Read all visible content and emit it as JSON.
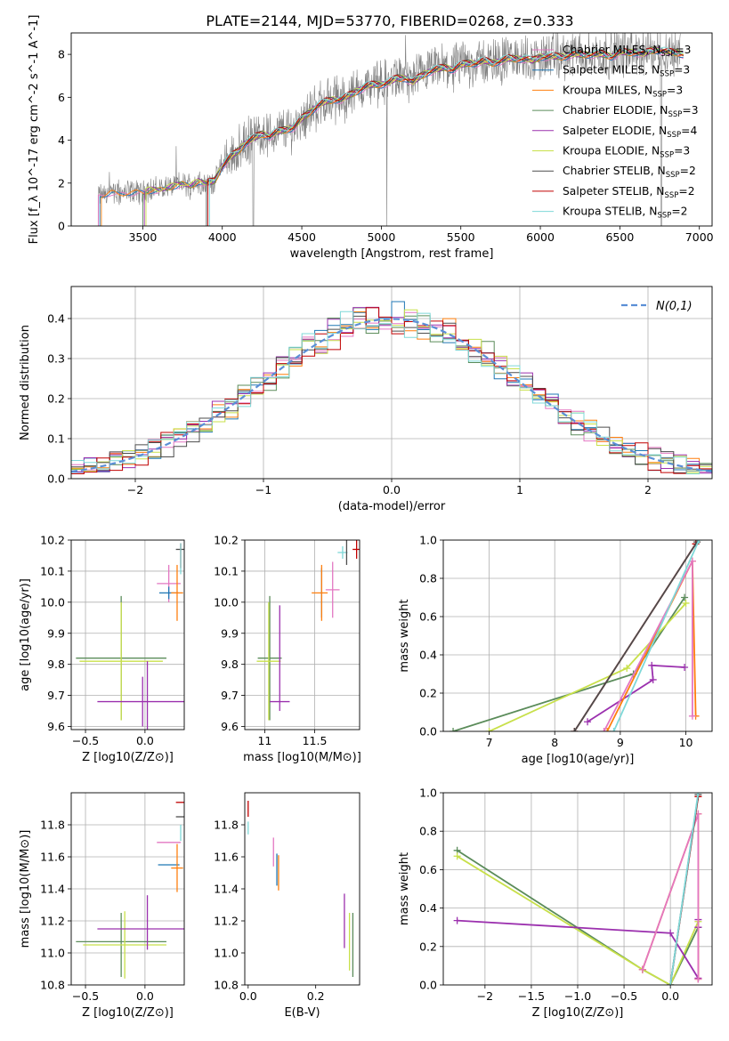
{
  "title": "PLATE=2144, MJD=53770, FIBERID=0268, z=0.333",
  "colors": [
    "#ff7f0e",
    "#e377c2",
    "#1f77b4",
    "#ff7f0e",
    "#5b8c5a",
    "#9b30ae",
    "#c8e04a",
    "#4d4d4d",
    "#c00000",
    "#7fd8d8"
  ],
  "legend_names": [
    "Chabrier MILES, N_SSP=3",
    "Salpeter MILES, N_SSP=3",
    "Kroupa MILES, N_SSP=3",
    "Chabrier ELODIE, N_SSP=3",
    "Salpeter ELODIE, N_SSP=4",
    "Kroupa ELODIE, N_SSP=3",
    "Chabrier STELIB, N_SSP=2",
    "Salpeter STELIB, N_SSP=2",
    "Kroupa STELIB, N_SSP=2"
  ],
  "chart_data": [
    {
      "id": "spectrum",
      "type": "line",
      "xlabel": "wavelength [Angstrom, rest frame]",
      "ylabel": "Flux [f_λ 10^-17 erg cm^-2 s^-1 A^-1]",
      "xlim": [
        3050,
        7080
      ],
      "ylim": [
        0,
        9
      ],
      "xticks": [
        3500,
        4000,
        4500,
        5000,
        5500,
        6000,
        6500,
        7000
      ],
      "yticks": [
        0,
        2,
        4,
        6,
        8
      ],
      "grid": false,
      "legend": "upper right",
      "data_color": "#808080",
      "model": {
        "x": [
          3220,
          3250,
          3300,
          3350,
          3400,
          3450,
          3500,
          3550,
          3600,
          3650,
          3700,
          3750,
          3800,
          3850,
          3900,
          3950,
          4000,
          4050,
          4100,
          4150,
          4200,
          4250,
          4300,
          4350,
          4400,
          4450,
          4500,
          4550,
          4600,
          4650,
          4700,
          4750,
          4800,
          4850,
          4900,
          4950,
          5000,
          5050,
          5100,
          5150,
          5200,
          5250,
          5300,
          5350,
          5400,
          5450,
          5500,
          5550,
          5600,
          5650,
          5700,
          5750,
          5800,
          5850,
          5900,
          5950,
          6000,
          6050,
          6100,
          6150,
          6200,
          6250,
          6300,
          6350,
          6400,
          6450,
          6500,
          6550,
          6600,
          6650,
          6700,
          6750,
          6800,
          6850,
          6900
        ],
        "y": [
          1.4,
          1.5,
          1.6,
          1.5,
          1.6,
          1.6,
          1.6,
          1.7,
          1.7,
          1.8,
          1.9,
          2.0,
          1.9,
          2.1,
          2.0,
          2.1,
          2.8,
          3.2,
          3.5,
          3.9,
          4.1,
          4.3,
          4.2,
          4.4,
          4.5,
          4.6,
          5.0,
          5.3,
          5.6,
          5.8,
          5.9,
          5.9,
          6.1,
          6.3,
          6.5,
          6.6,
          6.6,
          6.7,
          6.9,
          6.9,
          6.7,
          7.0,
          7.2,
          7.3,
          7.4,
          7.3,
          7.5,
          7.6,
          7.6,
          7.7,
          7.6,
          7.7,
          7.8,
          7.8,
          7.8,
          7.7,
          7.9,
          7.9,
          7.9,
          7.9,
          8.0,
          8.0,
          8.0,
          8.0,
          8.0,
          7.9,
          8.1,
          8.1,
          8.1,
          8.0,
          8.2,
          8.2,
          8.1,
          8.1,
          8.0
        ]
      },
      "model_starts": [
        3220,
        3230,
        3240,
        3500,
        3510,
        3520,
        3900,
        3910,
        3920
      ]
    },
    {
      "id": "residuals",
      "type": "step",
      "xlabel": "(data-model)/error",
      "ylabel": "Normed distribution",
      "xlim": [
        -2.5,
        2.5
      ],
      "ylim": [
        0,
        0.48
      ],
      "xticks": [
        -2,
        -1,
        0,
        1,
        2
      ],
      "yticks": [
        0.0,
        0.1,
        0.2,
        0.3,
        0.4
      ],
      "grid": true,
      "bin_width": 0.1,
      "gaussian_label": "N(0,1)",
      "gaussian_color": "#5b8fd6",
      "legend": "upper right"
    },
    {
      "id": "age_vs_Z",
      "type": "errorbar",
      "xlabel": "Z [log10(Z/Z⊙)]",
      "ylabel": "age  [log10(age/yr)]",
      "xlim": [
        -0.62,
        0.33
      ],
      "ylim": [
        9.59,
        10.2
      ],
      "xticks": [
        -0.5,
        0.0
      ],
      "yticks": [
        9.6,
        9.7,
        9.8,
        9.9,
        10.0,
        10.1,
        10.2
      ],
      "grid": true,
      "points": [
        {
          "c": 4,
          "x": -0.2,
          "y": 9.82,
          "xe": 0.38,
          "ye": 0.2
        },
        {
          "c": 6,
          "x": -0.2,
          "y": 9.81,
          "xe": 0.35,
          "ye": 0.19
        },
        {
          "c": 5,
          "x": -0.02,
          "y": 9.68,
          "xe": 0.38,
          "ye": 0.08
        },
        {
          "c": 5,
          "x": 0.02,
          "y": 9.68,
          "xe": 0.0,
          "ye": 0.13
        },
        {
          "c": 1,
          "x": 0.2,
          "y": 10.06,
          "xe": 0.1,
          "ye": 0.06
        },
        {
          "c": 2,
          "x": 0.2,
          "y": 10.03,
          "xe": 0.08,
          "ye": 0.02
        },
        {
          "c": 0,
          "x": 0.27,
          "y": 10.03,
          "xe": 0.05,
          "ye": 0.09
        },
        {
          "c": 7,
          "x": 0.3,
          "y": 10.17,
          "xe": 0.04,
          "ye": 0.0
        },
        {
          "c": 8,
          "x": 0.3,
          "y": 10.15,
          "xe": 0.0,
          "ye": 0.04
        },
        {
          "c": 9,
          "x": 0.3,
          "y": 10.14,
          "xe": 0.0,
          "ye": 0.05
        }
      ]
    },
    {
      "id": "age_vs_mass",
      "type": "errorbar",
      "xlabel": "mass [log10(M/M⊙)]",
      "ylabel": "",
      "xlim": [
        10.8,
        11.95
      ],
      "ylim": [
        9.59,
        10.2
      ],
      "xticks": [
        11.0,
        11.5
      ],
      "yticks": [
        9.6,
        9.7,
        9.8,
        9.9,
        10.0,
        10.1,
        10.2
      ],
      "grid": true,
      "points": [
        {
          "c": 4,
          "x": 11.05,
          "y": 9.82,
          "xe": 0.12,
          "ye": 0.2
        },
        {
          "c": 6,
          "x": 11.04,
          "y": 9.81,
          "xe": 0.12,
          "ye": 0.19
        },
        {
          "c": 5,
          "x": 11.15,
          "y": 9.68,
          "xe": 0.1,
          "ye": 0.0
        },
        {
          "c": 5,
          "x": 11.15,
          "y": 9.82,
          "xe": 0.0,
          "ye": 0.17
        },
        {
          "c": 0,
          "x": 11.55,
          "y": 10.03,
          "xe": 0.08,
          "ye": 0.0
        },
        {
          "c": 2,
          "x": 11.57,
          "y": 10.03,
          "xe": 0.0,
          "ye": 0.08
        },
        {
          "c": 0,
          "x": 11.57,
          "y": 10.03,
          "xe": 0.0,
          "ye": 0.09
        },
        {
          "c": 1,
          "x": 11.68,
          "y": 10.04,
          "xe": 0.07,
          "ye": 0.09
        },
        {
          "c": 9,
          "x": 11.78,
          "y": 10.16,
          "xe": 0.05,
          "ye": 0.02
        },
        {
          "c": 7,
          "x": 11.82,
          "y": 10.17,
          "xe": 0.0,
          "ye": 0.05
        },
        {
          "c": 8,
          "x": 11.92,
          "y": 10.17,
          "xe": 0.04,
          "ye": 0.03
        }
      ]
    },
    {
      "id": "massweight_vs_age",
      "type": "line",
      "xlabel": "age  [log10(age/yr)]",
      "ylabel": "mass weight",
      "xlim": [
        6.3,
        10.4
      ],
      "ylim": [
        0,
        1.0
      ],
      "xticks": [
        6,
        7,
        8,
        9,
        10
      ],
      "yticks": [
        0.0,
        0.2,
        0.4,
        0.6,
        0.8,
        1.0
      ],
      "grid": true,
      "series": [
        {
          "c": 4,
          "x": [
            6.45,
            9.2,
            9.98
          ],
          "y": [
            0.0,
            0.3,
            0.7
          ]
        },
        {
          "c": 6,
          "x": [
            7.0,
            9.1,
            10.0
          ],
          "y": [
            0.0,
            0.33,
            0.67
          ]
        },
        {
          "c": 5,
          "x": [
            8.5,
            9.5,
            9.48,
            9.98
          ],
          "y": [
            0.05,
            0.27,
            0.345,
            0.335
          ]
        },
        {
          "c": 0,
          "x": [
            8.8,
            10.1,
            10.15
          ],
          "y": [
            0.0,
            0.89,
            0.08
          ]
        },
        {
          "c": 1,
          "x": [
            8.75,
            10.1,
            10.1
          ],
          "y": [
            0.0,
            0.89,
            0.08
          ]
        },
        {
          "c": 8,
          "x": [
            8.3,
            10.15
          ],
          "y": [
            0.0,
            0.98
          ]
        },
        {
          "c": 7,
          "x": [
            8.3,
            10.17
          ],
          "y": [
            0.0,
            0.99
          ]
        },
        {
          "c": 9,
          "x": [
            8.9,
            10.2
          ],
          "y": [
            0.0,
            1.0
          ]
        }
      ]
    },
    {
      "id": "mass_vs_Z",
      "type": "errorbar",
      "xlabel": "Z [log10(Z/Z⊙)]",
      "ylabel": "mass [log10(M/M⊙)]",
      "xlim": [
        -0.62,
        0.33
      ],
      "ylim": [
        10.8,
        12.0
      ],
      "xticks": [
        -0.5,
        0.0
      ],
      "yticks": [
        10.8,
        11.0,
        11.2,
        11.4,
        11.6,
        11.8
      ],
      "grid": true,
      "points": [
        {
          "c": 4,
          "x": -0.2,
          "y": 11.07,
          "xe": 0.38,
          "ye": 0.0
        },
        {
          "c": 4,
          "x": -0.2,
          "y": 11.05,
          "xe": 0.0,
          "ye": 0.2
        },
        {
          "c": 6,
          "x": -0.17,
          "y": 11.05,
          "xe": 0.35,
          "ye": 0.21
        },
        {
          "c": 5,
          "x": -0.02,
          "y": 11.15,
          "xe": 0.38,
          "ye": 0.0
        },
        {
          "c": 5,
          "x": 0.02,
          "y": 11.19,
          "xe": 0.0,
          "ye": 0.17
        },
        {
          "c": 1,
          "x": 0.2,
          "y": 11.69,
          "xe": 0.1,
          "ye": 0.0
        },
        {
          "c": 2,
          "x": 0.2,
          "y": 11.55,
          "xe": 0.09,
          "ye": 0.0
        },
        {
          "c": 0,
          "x": 0.27,
          "y": 11.53,
          "xe": 0.05,
          "ye": 0.15
        },
        {
          "c": 8,
          "x": 0.3,
          "y": 11.94,
          "xe": 0.04,
          "ye": 0.0
        },
        {
          "c": 7,
          "x": 0.3,
          "y": 11.85,
          "xe": 0.04,
          "ye": 0.0
        },
        {
          "c": 9,
          "x": 0.3,
          "y": 11.75,
          "xe": 0.0,
          "ye": 0.05
        }
      ]
    },
    {
      "id": "mass_vs_ebv",
      "type": "errorbar",
      "xlabel": "E(B-V)",
      "ylabel": "",
      "xlim": [
        -0.01,
        0.33
      ],
      "ylim": [
        10.8,
        12.0
      ],
      "xticks": [
        0.0,
        0.2
      ],
      "yticks": [
        10.8,
        11.0,
        11.2,
        11.4,
        11.6,
        11.8
      ],
      "grid": false,
      "points": [
        {
          "c": 8,
          "x": 0.0,
          "y": 11.9,
          "xe": 0.0,
          "ye": 0.05
        },
        {
          "c": 9,
          "x": 0.0,
          "y": 11.78,
          "xe": 0.0,
          "ye": 0.04
        },
        {
          "c": 1,
          "x": 0.075,
          "y": 11.63,
          "xe": 0.0,
          "ye": 0.09
        },
        {
          "c": 2,
          "x": 0.085,
          "y": 11.52,
          "xe": 0.0,
          "ye": 0.1
        },
        {
          "c": 0,
          "x": 0.09,
          "y": 11.5,
          "xe": 0.0,
          "ye": 0.11
        },
        {
          "c": 5,
          "x": 0.285,
          "y": 11.2,
          "xe": 0.0,
          "ye": 0.17
        },
        {
          "c": 6,
          "x": 0.3,
          "y": 11.07,
          "xe": 0.0,
          "ye": 0.18
        },
        {
          "c": 4,
          "x": 0.31,
          "y": 11.05,
          "xe": 0.0,
          "ye": 0.2
        }
      ]
    },
    {
      "id": "massweight_vs_Z",
      "type": "line",
      "xlabel": "Z [log10(Z/Z⊙)]",
      "ylabel": "mass weight",
      "xlim": [
        -2.45,
        0.45
      ],
      "ylim": [
        0,
        1.0
      ],
      "xticks": [
        -2.0,
        -1.5,
        -1.0,
        -0.5,
        0.0
      ],
      "yticks": [
        0.0,
        0.2,
        0.4,
        0.6,
        0.8,
        1.0
      ],
      "grid": true,
      "series": [
        {
          "c": 4,
          "x": [
            -2.3,
            -0.3,
            0.0,
            0.3
          ],
          "y": [
            0.7,
            0.08,
            0.0,
            0.3
          ]
        },
        {
          "c": 6,
          "x": [
            -2.3,
            -0.3,
            0.0,
            0.3
          ],
          "y": [
            0.67,
            0.08,
            0.0,
            0.33
          ]
        },
        {
          "c": 5,
          "x": [
            -2.3,
            0.0,
            0.3,
            0.3,
            0.3
          ],
          "y": [
            0.335,
            0.27,
            0.035,
            0.34,
            0.3
          ]
        },
        {
          "c": 0,
          "x": [
            -0.3,
            0.3,
            0.3
          ],
          "y": [
            0.08,
            0.89,
            0.03
          ]
        },
        {
          "c": 1,
          "x": [
            -0.3,
            0.3,
            0.3
          ],
          "y": [
            0.08,
            0.89,
            0.03
          ]
        },
        {
          "c": 8,
          "x": [
            0.0,
            0.3
          ],
          "y": [
            0.0,
            0.98
          ]
        },
        {
          "c": 7,
          "x": [
            0.0,
            0.3
          ],
          "y": [
            0.0,
            0.99
          ]
        },
        {
          "c": 9,
          "x": [
            0.0,
            0.3
          ],
          "y": [
            0.0,
            1.0
          ]
        }
      ]
    }
  ]
}
